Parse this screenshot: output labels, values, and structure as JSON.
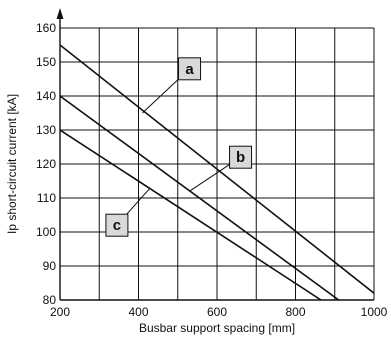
{
  "chart_data": {
    "type": "line",
    "xlabel": "Busbar support spacing [mm]",
    "ylabel": "Ip short-circuit current [kA]",
    "xlim": [
      200,
      1000
    ],
    "ylim": [
      80,
      160
    ],
    "xticks": [
      200,
      400,
      600,
      800,
      1000
    ],
    "yticks": [
      80,
      90,
      100,
      110,
      120,
      130,
      140,
      150,
      160
    ],
    "x_grid_step": 100,
    "y_grid_step": 10,
    "grid": true,
    "series": [
      {
        "name": "a",
        "x": [
          200,
          1000
        ],
        "y": [
          155,
          82
        ]
      },
      {
        "name": "b",
        "x": [
          200,
          910
        ],
        "y": [
          140,
          80
        ]
      },
      {
        "name": "c",
        "x": [
          200,
          865
        ],
        "y": [
          130,
          80
        ]
      }
    ],
    "annotations": [
      {
        "label": "a",
        "series": "a",
        "x": 530,
        "y": 148,
        "target_x": 410,
        "target_y": 135
      },
      {
        "label": "b",
        "series": "b",
        "x": 660,
        "y": 122,
        "target_x": 530,
        "target_y": 112
      },
      {
        "label": "c",
        "series": "c",
        "x": 345,
        "y": 102,
        "target_x": 430,
        "target_y": 113
      }
    ],
    "colors": {
      "line": "#111111",
      "grid": "#111111",
      "label_box": "#d9d9d9"
    }
  }
}
